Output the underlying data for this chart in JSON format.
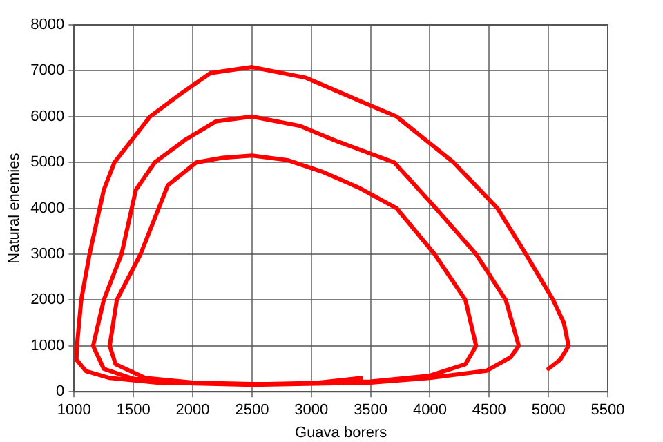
{
  "chart_data": {
    "type": "line",
    "xlabel": "Guava borers",
    "ylabel": "Natural enemies",
    "xlim": [
      1000,
      5500
    ],
    "xticks": [
      1000,
      1500,
      2000,
      2500,
      3000,
      3500,
      4000,
      4500,
      5000,
      5500
    ],
    "ylim": [
      0,
      8000
    ],
    "yticks": [
      0,
      1000,
      2000,
      3000,
      4000,
      5000,
      6000,
      7000,
      8000
    ],
    "grid": true,
    "legend": false,
    "marker": "none",
    "line_style": "solid",
    "series": [
      {
        "color": "#ff0000",
        "x": [
          5000,
          5100,
          5170,
          5130,
          5040,
          4810,
          4570,
          4200,
          3720,
          3420,
          2950,
          2500,
          2150,
          1900,
          1640,
          1340,
          1250,
          1130,
          1060,
          1024,
          1020,
          1100,
          1300,
          1700,
          2500,
          3500,
          4000,
          4480,
          4680,
          4750,
          4640,
          4390,
          4050,
          3700,
          3220,
          2900,
          2500,
          2200,
          1940,
          1680,
          1520,
          1400,
          1250,
          1160,
          1250,
          1500,
          2000,
          2500,
          3500,
          4000,
          4300,
          4390,
          4300,
          4040,
          3720,
          3400,
          3100,
          2800,
          2500,
          2250,
          2030,
          1790,
          1560,
          1360,
          1300,
          1350,
          1600,
          2000,
          2500,
          3000,
          3420
        ],
        "values": [
          500,
          700,
          1000,
          1500,
          2000,
          3000,
          4000,
          5000,
          6000,
          6330,
          6850,
          7080,
          6950,
          6500,
          6000,
          5000,
          4400,
          3000,
          2000,
          1000,
          700,
          450,
          300,
          200,
          150,
          200,
          300,
          460,
          750,
          1000,
          2000,
          3000,
          4000,
          5000,
          5460,
          5800,
          6000,
          5900,
          5500,
          5000,
          4400,
          3000,
          2000,
          1000,
          500,
          280,
          180,
          160,
          220,
          350,
          600,
          1000,
          2000,
          3000,
          4000,
          4450,
          4790,
          5050,
          5150,
          5100,
          5000,
          4500,
          3000,
          2000,
          1000,
          600,
          300,
          200,
          170,
          180,
          300
        ]
      }
    ]
  }
}
